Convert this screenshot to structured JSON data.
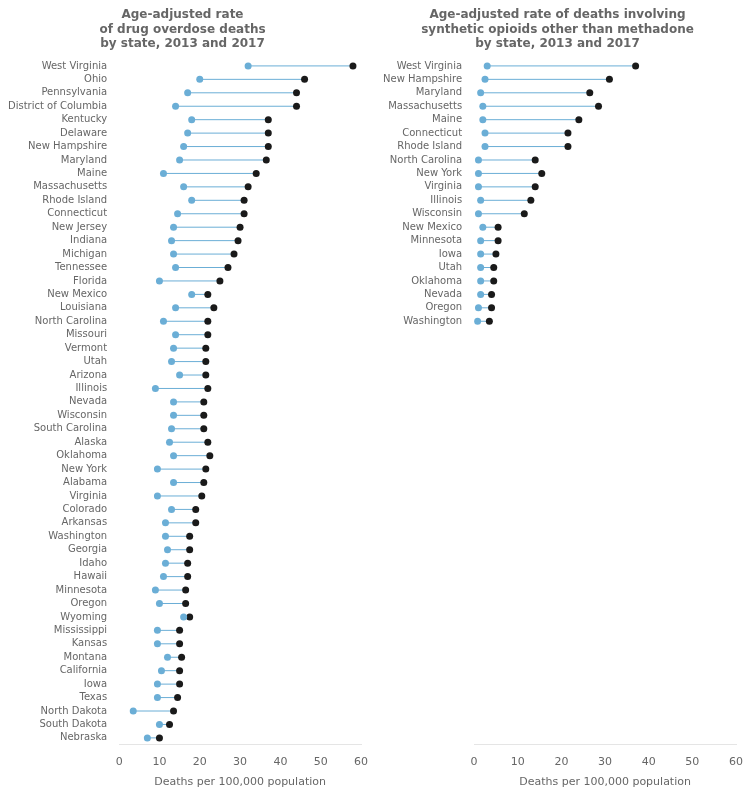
{
  "chart_data": [
    {
      "type": "dumbbell",
      "title": "Age-adjusted rate\nof drug overdose deaths\nby state, 2013 and 2017",
      "x_label": "Deaths per 100,000 population",
      "categories": [
        "West Virginia",
        "Ohio",
        "Pennsylvania",
        "District of Columbia",
        "Kentucky",
        "Delaware",
        "New Hampshire",
        "Maryland",
        "Maine",
        "Massachusetts",
        "Rhode Island",
        "Connecticut",
        "New Jersey",
        "Indiana",
        "Michigan",
        "Tennessee",
        "Florida",
        "New Mexico",
        "Louisiana",
        "North Carolina",
        "Missouri",
        "Vermont",
        "Utah",
        "Arizona",
        "Illinois",
        "Nevada",
        "Wisconsin",
        "South Carolina",
        "Alaska",
        "Oklahoma",
        "New York",
        "Alabama",
        "Virginia",
        "Colorado",
        "Arkansas",
        "Washington",
        "Georgia",
        "Idaho",
        "Hawaii",
        "Minnesota",
        "Oregon",
        "Wyoming",
        "Mississippi",
        "Kansas",
        "Montana",
        "California",
        "Iowa",
        "Texas",
        "North Dakota",
        "South Dakota",
        "Nebraska"
      ],
      "series": [
        {
          "color": "#6baed6",
          "values": [
            32.0,
            20.0,
            17.0,
            14.0,
            18.0,
            17.0,
            16.0,
            15.0,
            11.0,
            16.0,
            18.0,
            14.5,
            13.5,
            13.0,
            13.5,
            14.0,
            10.0,
            18.0,
            14.0,
            11.0,
            14.0,
            13.5,
            13.0,
            15.0,
            9.0,
            13.5,
            13.5,
            13.0,
            12.5,
            13.5,
            9.5,
            13.5,
            9.5,
            13.0,
            11.5,
            11.5,
            12.0,
            11.5,
            11.0,
            9.0,
            10.0,
            16.0,
            9.5,
            9.5,
            12.0,
            10.5,
            9.5,
            9.5,
            3.5,
            10.0,
            7.0
          ]
        },
        {
          "color": "#1a1a1a",
          "values": [
            58.0,
            46.0,
            44.0,
            44.0,
            37.0,
            37.0,
            37.0,
            36.5,
            34.0,
            32.0,
            31.0,
            31.0,
            30.0,
            29.5,
            28.5,
            27.0,
            25.0,
            22.0,
            23.5,
            22.0,
            22.0,
            21.5,
            21.5,
            21.5,
            22.0,
            21.0,
            21.0,
            21.0,
            22.0,
            22.5,
            21.5,
            21.0,
            20.5,
            19.0,
            19.0,
            17.5,
            17.5,
            17.0,
            17.0,
            16.5,
            16.5,
            17.5,
            15.0,
            15.0,
            15.5,
            15.0,
            15.0,
            14.5,
            13.5,
            12.5,
            10.0
          ]
        }
      ],
      "xlim": [
        0,
        60
      ],
      "xticks": [
        0,
        10,
        20,
        30,
        40,
        50,
        60
      ],
      "grid": false
    },
    {
      "type": "dumbbell",
      "title": "Age-adjusted rate of deaths involving\nsynthetic opioids other than methadone\nby state, 2013 and 2017",
      "x_label": "Deaths per 100,000 population",
      "categories": [
        "West Virginia",
        "New Hampshire",
        "Maryland",
        "Massachusetts",
        "Maine",
        "Connecticut",
        "Rhode Island",
        "North Carolina",
        "New York",
        "Virginia",
        "Illinois",
        "Wisconsin",
        "New Mexico",
        "Minnesota",
        "Iowa",
        "Utah",
        "Oklahoma",
        "Nevada",
        "Oregon",
        "Washington"
      ],
      "series": [
        {
          "color": "#6baed6",
          "values": [
            3.0,
            2.5,
            1.5,
            2.0,
            2.0,
            2.5,
            2.5,
            1.0,
            1.0,
            1.0,
            1.5,
            1.0,
            2.0,
            1.5,
            1.5,
            1.5,
            1.5,
            1.5,
            1.0,
            0.8
          ]
        },
        {
          "color": "#1a1a1a",
          "values": [
            37.0,
            31.0,
            26.5,
            28.5,
            24.0,
            21.5,
            21.5,
            14.0,
            15.5,
            14.0,
            13.0,
            11.5,
            5.5,
            5.5,
            5.0,
            4.5,
            4.5,
            4.0,
            4.0,
            3.5
          ]
        }
      ],
      "xlim": [
        0,
        60
      ],
      "xticks": [
        0,
        10,
        20,
        30,
        40,
        50,
        60
      ],
      "grid": false
    }
  ]
}
